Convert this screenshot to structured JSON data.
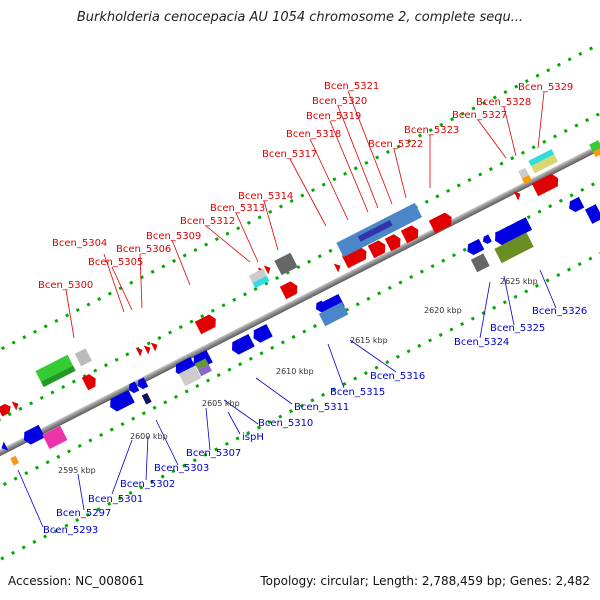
{
  "title": "Burkholderia cenocepacia AU 1054 chromosome 2, complete sequ...",
  "footer": {
    "accession": "Accession: NC_008061",
    "topology": "Topology: circular; Length: 2,788,459 bp; Genes: 2,482"
  },
  "scale_labels": [
    "2595 kbp",
    "2600 kbp",
    "2605 kbp",
    "2610 kbp",
    "2615 kbp",
    "2620 kbp",
    "2625 kbp"
  ],
  "genes_forward": [
    "Bcen_5300",
    "Bcen_5304",
    "Bcen_5305",
    "Bcen_5306",
    "Bcen_5309",
    "Bcen_5312",
    "Bcen_5313",
    "Bcen_5314",
    "Bcen_5317",
    "Bcen_5318",
    "Bcen_5319",
    "Bcen_5320",
    "Bcen_5321",
    "Bcen_5322",
    "Bcen_5323",
    "Bcen_5327",
    "Bcen_5328",
    "Bcen_5329"
  ],
  "genes_reverse": [
    "Bcen_5293",
    "Bcen_5297",
    "Bcen_5301",
    "Bcen_5302",
    "Bcen_5303",
    "Bcen_5307",
    "ispH",
    "Bcen_5310",
    "Bcen_5311",
    "Bcen_5315",
    "Bcen_5316",
    "Bcen_5324",
    "Bcen_5325",
    "Bcen_5326"
  ],
  "colors": {
    "forward": "#ff0000",
    "reverse": "#0000ff",
    "backbone": "#909090",
    "forward_tick": "#00aa00",
    "reverse_tick": "#00aa00"
  }
}
